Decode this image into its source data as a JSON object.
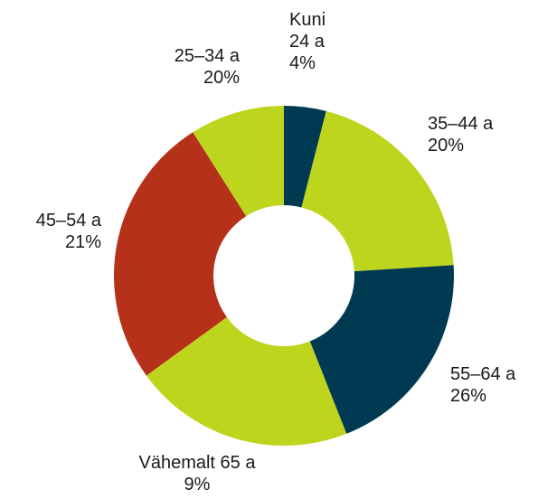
{
  "chart_data": {
    "type": "donut",
    "categories": [
      "Kuni 24 a",
      "25–34 a",
      "35–44 a",
      "45–54 a",
      "55–64 a",
      "Vähemalt 65 a"
    ],
    "values": [
      4,
      20,
      20,
      21,
      26,
      9
    ],
    "value_labels": [
      "4%",
      "20%",
      "20%",
      "21%",
      "26%",
      "9%"
    ],
    "colors": [
      "#003a52",
      "#bed51e",
      "#003a52",
      "#bed51e",
      "#b5311a",
      "#bed51e"
    ]
  }
}
